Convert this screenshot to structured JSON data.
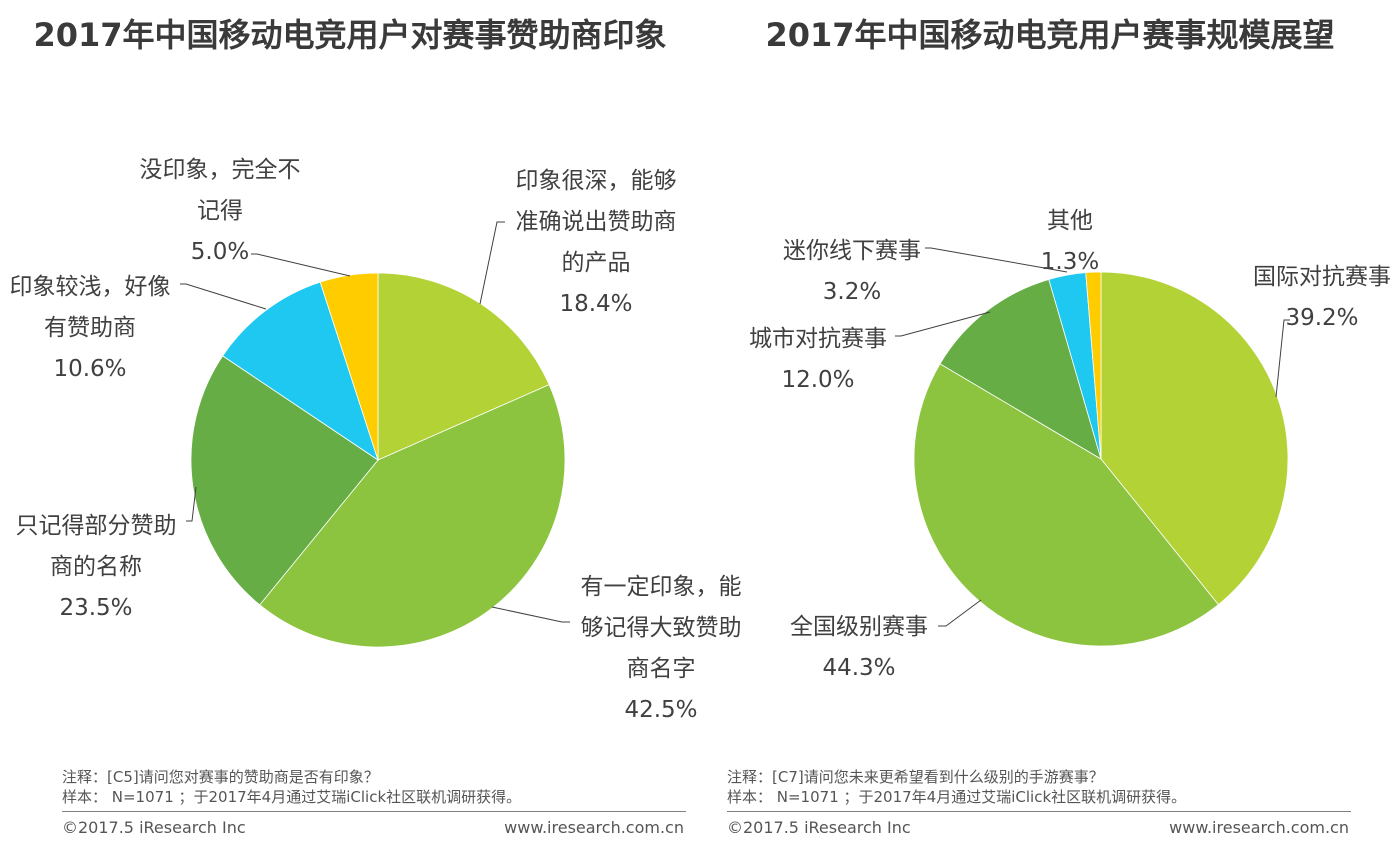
{
  "colors": {
    "c1": "#b3d235",
    "c2": "#8dc43f",
    "c3": "#66ad45",
    "c4": "#1ec8f0",
    "c5": "#ffcc00",
    "leader": "#404040",
    "label": "#404040"
  },
  "chart_data": [
    {
      "type": "pie",
      "title": "2017年中国移动电竞用户对赛事赞助商印象",
      "slices": [
        {
          "lines": [
            "印象很深，能够",
            "准确说出赞助商",
            "的产品"
          ],
          "percent_text": "18.4%",
          "value": 18.4
        },
        {
          "lines": [
            "有一定印象，能",
            "够记得大致赞助",
            "商名字"
          ],
          "percent_text": "42.5%",
          "value": 42.5
        },
        {
          "lines": [
            "只记得部分赞助",
            "商的名称"
          ],
          "percent_text": "23.5%",
          "value": 23.5
        },
        {
          "lines": [
            "印象较浅，好像",
            "有赞助商"
          ],
          "percent_text": "10.6%",
          "value": 10.6
        },
        {
          "lines": [
            "没印象，完全不",
            "记得"
          ],
          "percent_text": "5.0%",
          "value": 5.0
        }
      ],
      "notes": [
        "注释：[C5]请问您对赛事的赞助商是否有印象？",
        "样本： N=1071 ；于2017年4月通过艾瑞iClick社区联机调研获得。"
      ],
      "copyright": "©2017.5 iResearch Inc",
      "website": "www.iresearch.com.cn"
    },
    {
      "type": "pie",
      "title": "2017年中国移动电竞用户赛事规模展望",
      "slices": [
        {
          "lines": [
            "国际对抗赛事"
          ],
          "percent_text": "39.2%",
          "value": 39.2
        },
        {
          "lines": [
            "全国级别赛事"
          ],
          "percent_text": "44.3%",
          "value": 44.3
        },
        {
          "lines": [
            "城市对抗赛事"
          ],
          "percent_text": "12.0%",
          "value": 12.0
        },
        {
          "lines": [
            "迷你线下赛事"
          ],
          "percent_text": "3.2%",
          "value": 3.2
        },
        {
          "lines": [
            "其他"
          ],
          "percent_text": "1.3%",
          "value": 1.3
        }
      ],
      "notes": [
        "注释：[C7]请问您未来更希望看到什么级别的手游赛事？",
        "样本： N=1071 ；于2017年4月通过艾瑞iClick社区联机调研获得。"
      ],
      "copyright": "©2017.5 iResearch Inc",
      "website": "www.iresearch.com.cn"
    }
  ]
}
